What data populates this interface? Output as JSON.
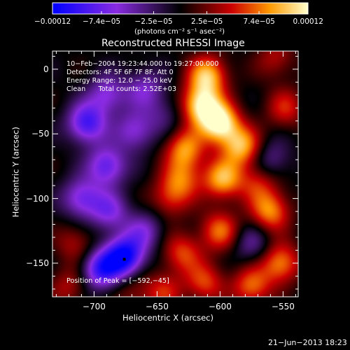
{
  "chart_data": {
    "type": "heatmap",
    "title": "Reconstructed RHESSI Image",
    "xlabel": "Heliocentric X (arcsec)",
    "ylabel": "Heliocentric Y (arcsec)",
    "xlim": [
      -733,
      -538
    ],
    "ylim": [
      -176,
      14
    ],
    "x_ticks": [
      -700,
      -650,
      -600,
      -550
    ],
    "x_tick_labels": [
      "−700",
      "−650",
      "−600",
      "−550"
    ],
    "y_ticks": [
      0,
      -50,
      -100,
      -150
    ],
    "y_tick_labels": [
      "0",
      "−50",
      "−100",
      "−150"
    ],
    "colorbar": {
      "range": [
        -0.00012,
        0.00012
      ],
      "tick_values": [
        -0.00012,
        -7.4e-05,
        -2.5e-05,
        2.5e-05,
        7.4e-05,
        0.00012
      ],
      "tick_labels": [
        "−0.00012",
        "−7.4e−05",
        "−2.5e−05",
        "2.5e−05",
        "7.4e−05",
        "0.00012"
      ],
      "units_label": "(photons cm⁻² s⁻¹ asec⁻²)",
      "colors": [
        "#0000ff",
        "#8a2be2",
        "#000000",
        "#cc0000",
        "#ff9900",
        "#ffffcc"
      ]
    },
    "annotations": [
      "10−Feb−2004 19:23:44.000 to 19:27:00.000",
      "Detectors: 4F 5F 6F 7F 8F, Att 0",
      "Energy Range: 12.0 − 25.0 keV",
      "Clean      Total counts: 2.52E+03"
    ],
    "peak_label": "Position of Peak = [−592,−45]",
    "peak_position": [
      -592,
      -45
    ],
    "marker_position": [
      -676,
      -147
    ],
    "field_sources": [
      {
        "x": -600,
        "y": -42,
        "value": 0.00012
      },
      {
        "x": -610,
        "y": -5,
        "value": 9.5e-05
      },
      {
        "x": -615,
        "y": -28,
        "value": 0.00011
      },
      {
        "x": -583,
        "y": -60,
        "value": 9e-05
      },
      {
        "x": -628,
        "y": -62,
        "value": 8e-05
      },
      {
        "x": -598,
        "y": -85,
        "value": 9e-05
      },
      {
        "x": -640,
        "y": -100,
        "value": 5e-05
      },
      {
        "x": -630,
        "y": -85,
        "value": 6e-05
      },
      {
        "x": -600,
        "y": -125,
        "value": 7e-05
      },
      {
        "x": -630,
        "y": -142,
        "value": 6e-05
      },
      {
        "x": -560,
        "y": -110,
        "value": 8e-05
      },
      {
        "x": -570,
        "y": -88,
        "value": 5e-05
      },
      {
        "x": -552,
        "y": -150,
        "value": 8e-05
      },
      {
        "x": -575,
        "y": -168,
        "value": 7e-05
      },
      {
        "x": -612,
        "y": -165,
        "value": 6e-05
      },
      {
        "x": -645,
        "y": -172,
        "value": 5e-05
      },
      {
        "x": -548,
        "y": -30,
        "value": 5e-05
      },
      {
        "x": -556,
        "y": 8,
        "value": 4e-05
      },
      {
        "x": -715,
        "y": -135,
        "value": 4e-05
      },
      {
        "x": -720,
        "y": -168,
        "value": 4e-05
      },
      {
        "x": -670,
        "y": -172,
        "value": 3e-05
      },
      {
        "x": -690,
        "y": -20,
        "value": -6e-05
      },
      {
        "x": -706,
        "y": -42,
        "value": -9e-05
      },
      {
        "x": -668,
        "y": -48,
        "value": -6e-05
      },
      {
        "x": -660,
        "y": -15,
        "value": -5e-05
      },
      {
        "x": -690,
        "y": -75,
        "value": -8e-05
      },
      {
        "x": -710,
        "y": -100,
        "value": -7e-05
      },
      {
        "x": -688,
        "y": -110,
        "value": -6e-05
      },
      {
        "x": -676,
        "y": -145,
        "value": -0.00012
      },
      {
        "x": -695,
        "y": -155,
        "value": -9e-05
      },
      {
        "x": -660,
        "y": -125,
        "value": -5e-05
      },
      {
        "x": -645,
        "y": -35,
        "value": -3e-05
      },
      {
        "x": -575,
        "y": -135,
        "value": -4e-05
      },
      {
        "x": -560,
        "y": -70,
        "value": -4e-05
      }
    ]
  },
  "footer": {
    "date": "21−Jun−2013 18:23"
  }
}
